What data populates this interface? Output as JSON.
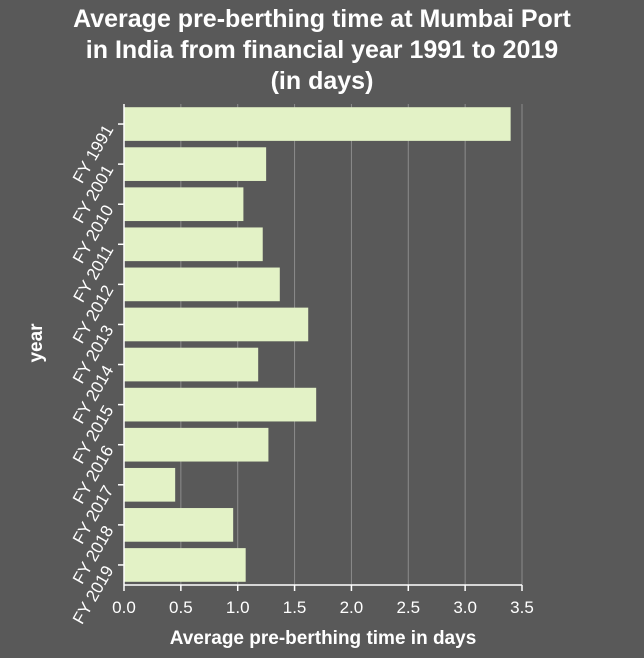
{
  "chart_data": {
    "type": "bar",
    "orientation": "horizontal",
    "title_lines": [
      "Average pre-berthing time at Mumbai Port",
      "in India from financial year 1991 to 2019",
      "(in days)"
    ],
    "xlabel": "Average pre-berthing time in days",
    "ylabel": "year",
    "categories": [
      "FY 1991",
      "FY 2001",
      "FY 2010",
      "FY 2011",
      "FY 2012",
      "FY 2013",
      "FY 2014",
      "FY 2015",
      "FY 2016",
      "FY 2017",
      "FY 2018",
      "FY 2019"
    ],
    "values": [
      3.4,
      1.25,
      1.05,
      1.22,
      1.37,
      1.62,
      1.18,
      1.69,
      1.27,
      0.45,
      0.96,
      1.07
    ],
    "xlim": [
      0,
      3.5
    ],
    "xticks": [
      "0.0",
      "0.5",
      "1.0",
      "1.5",
      "2.0",
      "2.5",
      "3.0",
      "3.5"
    ],
    "grid": "vertical",
    "colors": {
      "background": "#595959",
      "plot_background": "#595959",
      "bar": "#e3f2c6",
      "grid": "#8c8c8c",
      "text": "#ffffff"
    }
  }
}
